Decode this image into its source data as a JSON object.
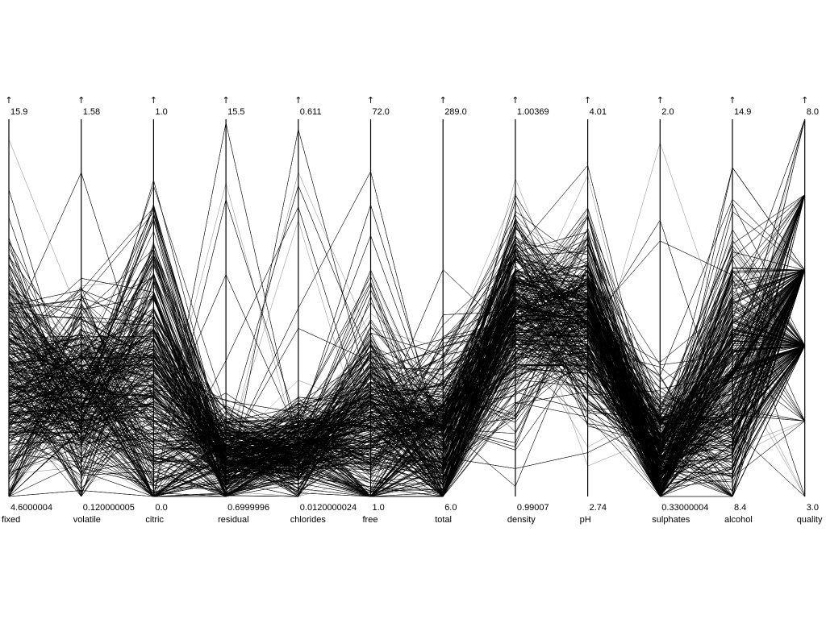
{
  "chart_data": {
    "type": "parallel-coordinates",
    "title": "",
    "arrow_glyph": "↑",
    "axes": [
      {
        "name": "fixed",
        "max_label": "15.9",
        "min_label": "4.6000004",
        "max": 15.9,
        "min": 4.6,
        "center": 0.3,
        "spread": 0.17
      },
      {
        "name": "volatile",
        "max_label": "1.58",
        "min_label": "0.120000005",
        "max": 1.58,
        "min": 0.12,
        "center": 0.27,
        "spread": 0.12
      },
      {
        "name": "citric",
        "max_label": "1.0",
        "min_label": "0.0",
        "max": 1.0,
        "min": 0.0,
        "center": 0.27,
        "spread": 0.2
      },
      {
        "name": "residual",
        "max_label": "15.5",
        "min_label": "0.6999996",
        "max": 15.5,
        "min": 0.7,
        "center": 0.1,
        "spread": 0.06
      },
      {
        "name": "chlorides",
        "max_label": "0.611",
        "min_label": "0.0120000024",
        "max": 0.611,
        "min": 0.012,
        "center": 0.13,
        "spread": 0.06
      },
      {
        "name": "free",
        "max_label": "72.0",
        "min_label": "1.0",
        "max": 72.0,
        "min": 1.0,
        "center": 0.2,
        "spread": 0.14
      },
      {
        "name": "total",
        "max_label": "289.0",
        "min_label": "6.0",
        "max": 289.0,
        "min": 6.0,
        "center": 0.15,
        "spread": 0.11
      },
      {
        "name": "density",
        "max_label": "1.00369",
        "min_label": "0.99007",
        "max": 1.00369,
        "min": 0.99007,
        "center": 0.49,
        "spread": 0.13
      },
      {
        "name": "pH",
        "max_label": "4.01",
        "min_label": "2.74",
        "max": 4.01,
        "min": 2.74,
        "center": 0.45,
        "spread": 0.12
      },
      {
        "name": "sulphates",
        "max_label": "2.0",
        "min_label": "0.33000004",
        "max": 2.0,
        "min": 0.33,
        "center": 0.12,
        "spread": 0.08
      },
      {
        "name": "alcohol",
        "max_label": "14.9",
        "min_label": "8.4",
        "max": 14.9,
        "min": 8.4,
        "center": 0.31,
        "spread": 0.17
      },
      {
        "name": "quality",
        "max_label": "8.0",
        "min_label": "3.0",
        "max": 8.0,
        "min": 3.0,
        "center": 0.5,
        "spread": 0.15,
        "discrete": true
      }
    ],
    "quality_levels": [
      3,
      4,
      5,
      6,
      7,
      8
    ],
    "quality_weights": [
      0.01,
      0.04,
      0.42,
      0.4,
      0.12,
      0.01
    ],
    "line_count": 1599
  }
}
